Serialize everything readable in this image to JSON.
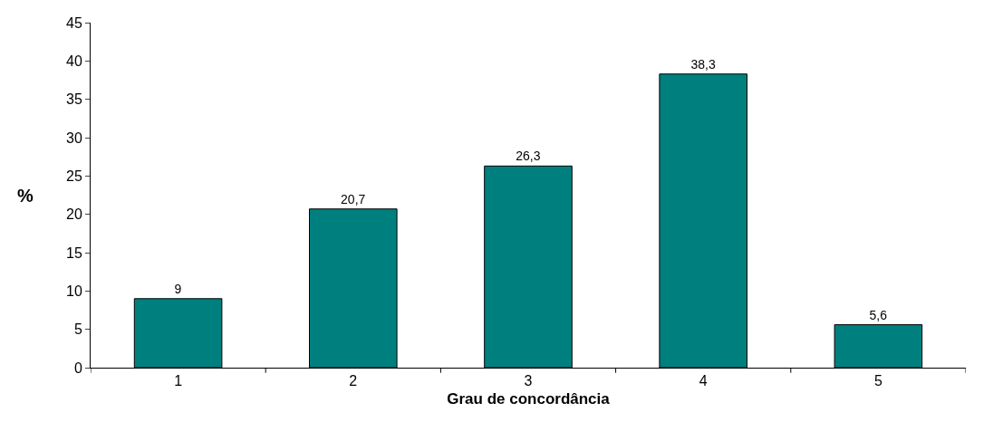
{
  "chart_data": {
    "type": "bar",
    "xlabel": "Grau de concordância",
    "ylabel": "%",
    "categories": [
      "1",
      "2",
      "3",
      "4",
      "5"
    ],
    "values": [
      9,
      20.7,
      26.3,
      38.3,
      5.6
    ],
    "value_labels": [
      "9",
      "20,7",
      "26,3",
      "38,3",
      "5,6"
    ],
    "color": "#007f7f",
    "ylim": [
      0,
      45
    ],
    "yticks": [
      0,
      5,
      10,
      15,
      20,
      25,
      30,
      35,
      40,
      45
    ]
  }
}
